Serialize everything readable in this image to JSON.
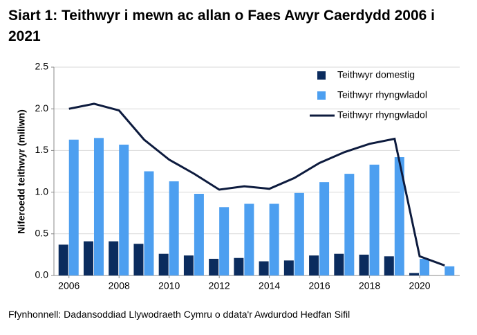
{
  "chart_data": {
    "type": "bar",
    "title": "Siart 1: Teithwyr i mewn ac allan o Faes Awyr Caerdydd 2006 i 2021",
    "y_label": "Niferoedd teithwyr (miliwn)",
    "source": "Ffynhonnell: Dadansoddiad Llywodraeth Cymru o ddata'r Awdurdod Hedfan Sifil",
    "x": [
      2006,
      2007,
      2008,
      2009,
      2010,
      2011,
      2012,
      2013,
      2014,
      2015,
      2016,
      2017,
      2018,
      2019,
      2020,
      2021
    ],
    "xlim": [
      2005.4,
      2021.6
    ],
    "xticks": [
      2006,
      2008,
      2010,
      2012,
      2014,
      2016,
      2018,
      2020
    ],
    "ylim": [
      0,
      2.5
    ],
    "yticks": [
      {
        "value": 0,
        "label": "0.0"
      },
      0.5,
      {
        "value": 1,
        "label": "1.0"
      },
      1.5,
      {
        "value": 2,
        "label": "2.0"
      },
      2.5
    ],
    "grid": true,
    "legend": "upper right",
    "series": [
      {
        "name": "Teithwyr domestig",
        "type": "bar",
        "color": "#0b2c5e",
        "values": [
          0.37,
          0.41,
          0.41,
          0.38,
          0.26,
          0.24,
          0.2,
          0.21,
          0.17,
          0.18,
          0.24,
          0.26,
          0.25,
          0.23,
          0.03,
          null
        ]
      },
      {
        "name": "Teithwyr rhyngwladol",
        "type": "bar",
        "color": "#4d9ff0",
        "values": [
          1.63,
          1.65,
          1.57,
          1.25,
          1.13,
          0.98,
          0.82,
          0.86,
          0.86,
          0.99,
          1.12,
          1.22,
          1.33,
          1.42,
          0.2,
          0.11
        ]
      },
      {
        "name": "Teithwyr rhyngwladol",
        "type": "line",
        "color": "#0d1b3e",
        "values": [
          2.0,
          2.06,
          1.98,
          1.63,
          1.39,
          1.22,
          1.03,
          1.07,
          1.04,
          1.17,
          1.35,
          1.48,
          1.58,
          1.64,
          0.23,
          0.12
        ]
      }
    ]
  }
}
